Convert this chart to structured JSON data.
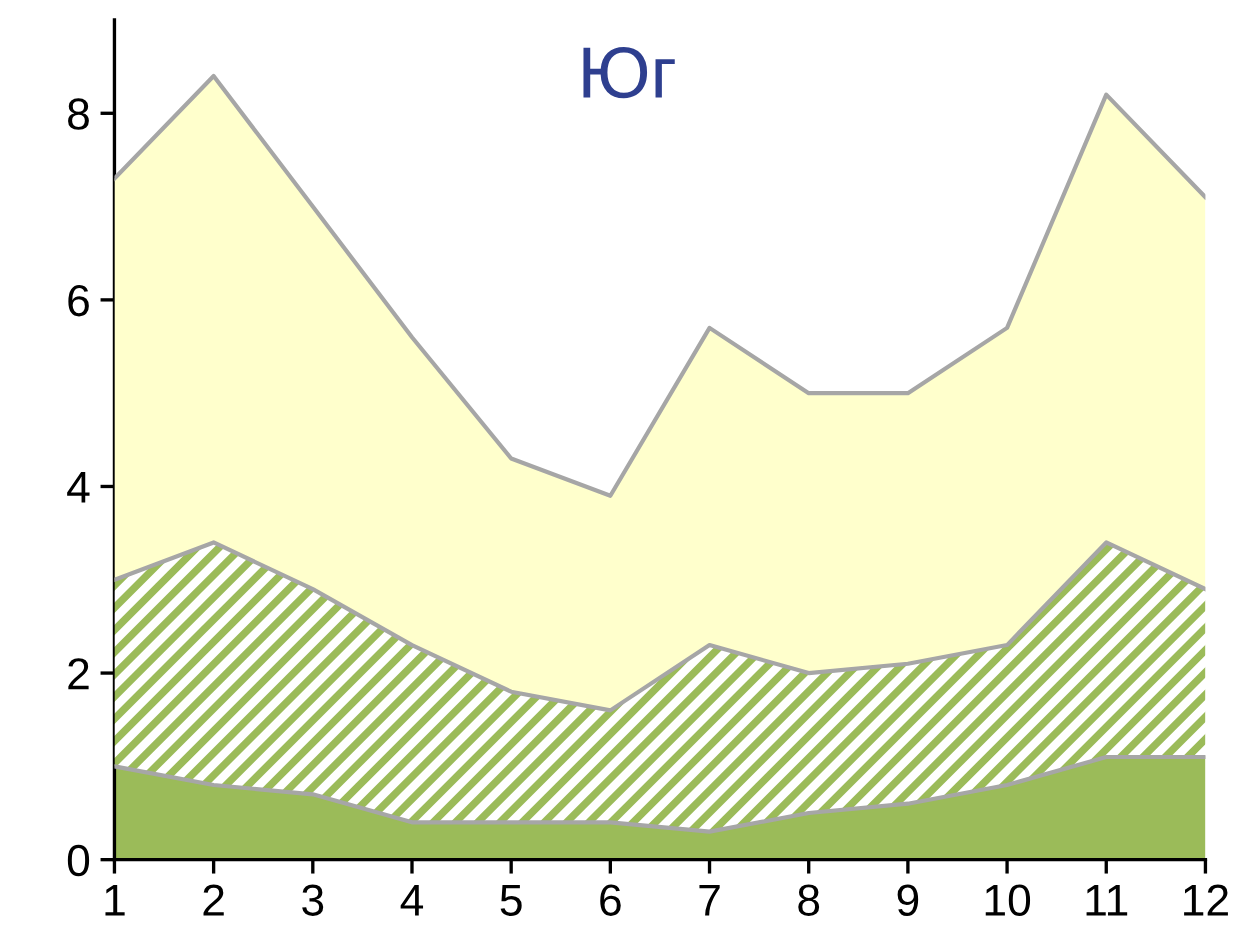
{
  "chart_data": {
    "type": "area",
    "title": "Юг",
    "stacked": true,
    "x": [
      1,
      2,
      3,
      4,
      5,
      6,
      7,
      8,
      9,
      10,
      11,
      12
    ],
    "series": [
      {
        "color": "#9bbb59",
        "values": [
          1.0,
          0.8,
          0.7,
          0.4,
          0.4,
          0.4,
          0.3,
          0.5,
          0.6,
          0.8,
          1.1,
          1.1
        ]
      },
      {
        "color": "#9bbb59",
        "values": [
          2.0,
          2.6,
          2.2,
          1.9,
          1.4,
          1.2,
          2.0,
          1.5,
          1.5,
          1.5,
          2.3,
          1.8
        ]
      },
      {
        "color": "#ffffcc",
        "values": [
          4.3,
          5.0,
          4.1,
          3.3,
          2.5,
          2.3,
          3.4,
          3.0,
          2.9,
          3.4,
          4.8,
          4.2
        ]
      }
    ],
    "xlim": [
      1,
      12
    ],
    "xticks": [
      1,
      2,
      3,
      4,
      5,
      6,
      7,
      8,
      9,
      10,
      11,
      12
    ],
    "ylim": [
      0,
      9
    ],
    "yticks": [
      0,
      2,
      4,
      6,
      8
    ],
    "grid": false
  }
}
